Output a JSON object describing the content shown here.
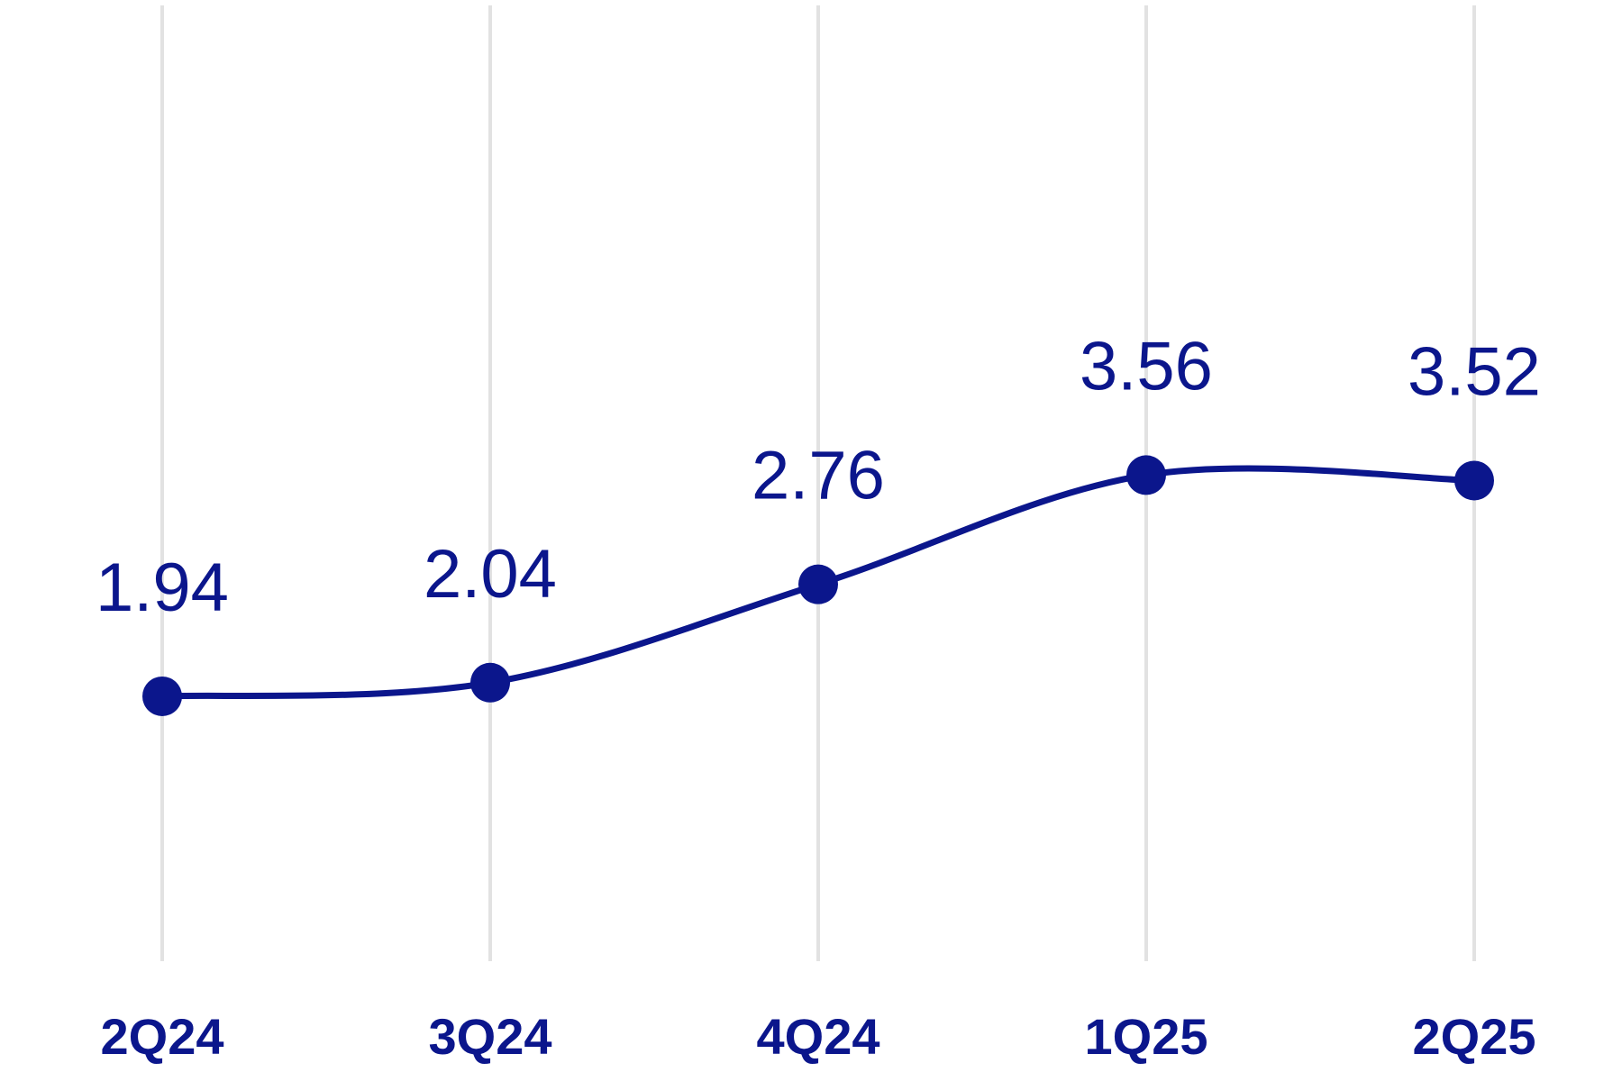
{
  "chart_data": {
    "type": "line",
    "categories": [
      "2Q24",
      "3Q24",
      "4Q24",
      "1Q25",
      "2Q25"
    ],
    "values": [
      1.94,
      2.04,
      2.76,
      3.56,
      3.52
    ],
    "color": "#0b168c",
    "ylim": [
      0,
      7
    ],
    "grid": true
  }
}
